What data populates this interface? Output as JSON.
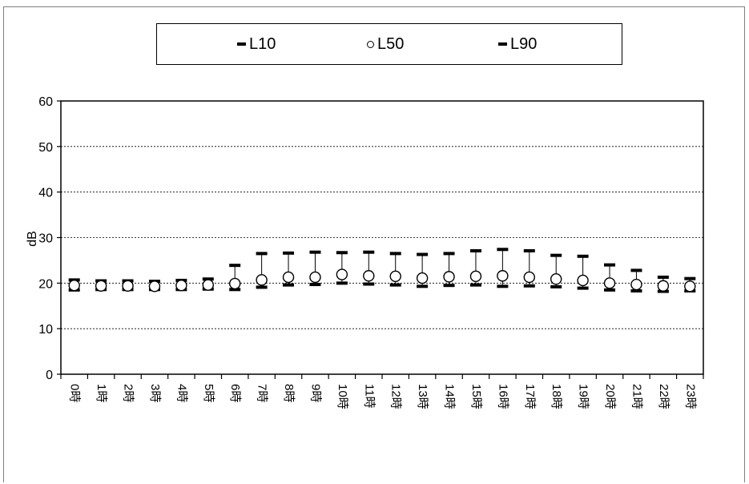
{
  "chart_data": {
    "type": "scatter",
    "title": "",
    "xlabel": "",
    "ylabel": "dB",
    "ylim": [
      0,
      60
    ],
    "yticks": [
      0,
      10,
      20,
      30,
      40,
      50,
      60
    ],
    "grid": true,
    "legend_position": "top-center",
    "categories": [
      "0時",
      "1時",
      "2時",
      "3時",
      "4時",
      "5時",
      "6時",
      "7時",
      "8時",
      "9時",
      "10時",
      "11時",
      "12時",
      "13時",
      "14時",
      "15時",
      "16時",
      "17時",
      "18時",
      "19時",
      "20時",
      "21時",
      "22時",
      "23時"
    ],
    "series": [
      {
        "name": "L10",
        "marker": "dash",
        "values": [
          20.7,
          20.5,
          20.5,
          20.4,
          20.6,
          20.9,
          23.9,
          26.5,
          26.6,
          26.8,
          26.7,
          26.8,
          26.5,
          26.3,
          26.5,
          27.1,
          27.4,
          27.1,
          26.1,
          25.9,
          24.0,
          22.8,
          21.3,
          21.0
        ]
      },
      {
        "name": "L50",
        "marker": "circle",
        "values": [
          19.5,
          19.4,
          19.4,
          19.3,
          19.5,
          19.6,
          19.9,
          20.7,
          21.3,
          21.3,
          21.9,
          21.6,
          21.5,
          21.1,
          21.4,
          21.5,
          21.6,
          21.3,
          20.9,
          20.6,
          20.0,
          19.7,
          19.4,
          19.3
        ]
      },
      {
        "name": "L90",
        "marker": "dash",
        "values": [
          18.5,
          18.6,
          18.6,
          18.6,
          18.6,
          18.7,
          18.6,
          19.1,
          19.6,
          19.7,
          20.0,
          19.8,
          19.6,
          19.3,
          19.5,
          19.6,
          19.3,
          19.4,
          19.2,
          18.9,
          18.5,
          18.3,
          18.2,
          18.3
        ]
      }
    ],
    "colors": {
      "marker": "#000000",
      "grid": "#000000",
      "axis": "#000000"
    }
  }
}
